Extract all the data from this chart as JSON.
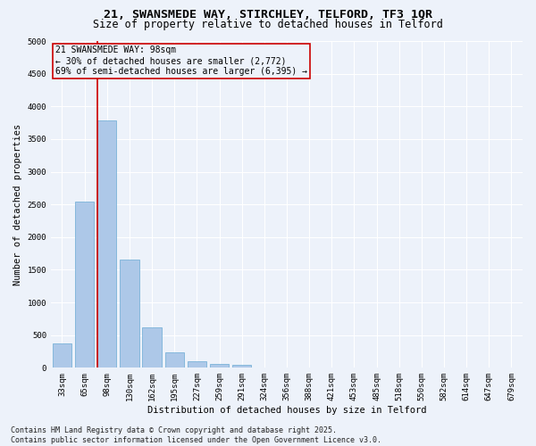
{
  "title1": "21, SWANSMEDE WAY, STIRCHLEY, TELFORD, TF3 1QR",
  "title2": "Size of property relative to detached houses in Telford",
  "xlabel": "Distribution of detached houses by size in Telford",
  "ylabel": "Number of detached properties",
  "categories": [
    "33sqm",
    "65sqm",
    "98sqm",
    "130sqm",
    "162sqm",
    "195sqm",
    "227sqm",
    "259sqm",
    "291sqm",
    "324sqm",
    "356sqm",
    "388sqm",
    "421sqm",
    "453sqm",
    "485sqm",
    "518sqm",
    "550sqm",
    "582sqm",
    "614sqm",
    "647sqm",
    "679sqm"
  ],
  "values": [
    370,
    2540,
    3780,
    1660,
    620,
    240,
    100,
    60,
    45,
    0,
    0,
    0,
    0,
    0,
    0,
    0,
    0,
    0,
    0,
    0,
    0
  ],
  "bar_color": "#adc8e8",
  "bar_edge_color": "#6aaad4",
  "vline_color": "#cc0000",
  "annotation_text": "21 SWANSMEDE WAY: 98sqm\n← 30% of detached houses are smaller (2,772)\n69% of semi-detached houses are larger (6,395) →",
  "annotation_box_color": "#cc0000",
  "ylim": [
    0,
    5000
  ],
  "yticks": [
    0,
    500,
    1000,
    1500,
    2000,
    2500,
    3000,
    3500,
    4000,
    4500,
    5000
  ],
  "footer1": "Contains HM Land Registry data © Crown copyright and database right 2025.",
  "footer2": "Contains public sector information licensed under the Open Government Licence v3.0.",
  "bg_color": "#edf2fa",
  "title_fontsize": 9.5,
  "subtitle_fontsize": 8.5,
  "axis_label_fontsize": 7.5,
  "tick_fontsize": 6.5,
  "annotation_fontsize": 7,
  "footer_fontsize": 6
}
